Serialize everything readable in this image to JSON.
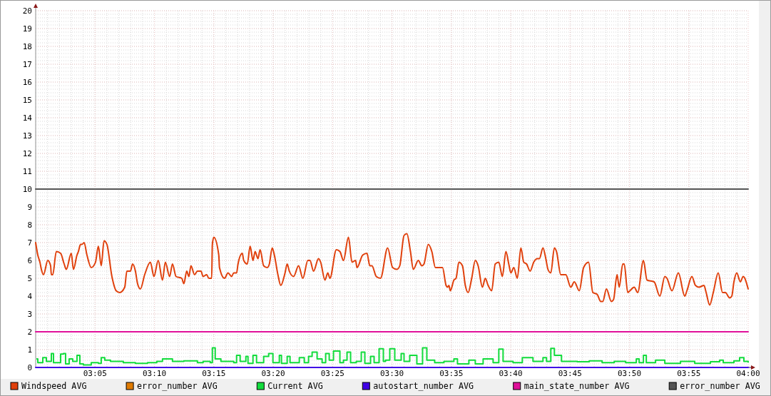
{
  "chart_data": {
    "type": "line",
    "xlim": [
      3,
      4
    ],
    "xticks": [
      {
        "value": 3.0833,
        "label": "03:05"
      },
      {
        "value": 3.1667,
        "label": "03:10"
      },
      {
        "value": 3.25,
        "label": "03:15"
      },
      {
        "value": 3.3333,
        "label": "03:20"
      },
      {
        "value": 3.4167,
        "label": "03:25"
      },
      {
        "value": 3.5,
        "label": "03:30"
      },
      {
        "value": 3.5833,
        "label": "03:35"
      },
      {
        "value": 3.6667,
        "label": "03:40"
      },
      {
        "value": 3.75,
        "label": "03:45"
      },
      {
        "value": 3.8333,
        "label": "03:50"
      },
      {
        "value": 3.9167,
        "label": "03:55"
      },
      {
        "value": 4,
        "label": "04:00"
      }
    ],
    "ylim": [
      0,
      20
    ],
    "yticks": [
      0,
      1,
      2,
      3,
      4,
      5,
      6,
      7,
      8,
      9,
      10,
      11,
      12,
      13,
      14,
      15,
      16,
      17,
      18,
      19,
      20
    ],
    "grid": true,
    "legend": "bottom",
    "series": [
      {
        "name": "Windspeed AVG",
        "color": "#e0400c",
        "x": [
          3.0,
          3.003,
          3.006,
          3.008,
          3.011,
          3.017,
          3.021,
          3.022,
          3.024,
          3.029,
          3.035,
          3.04,
          3.043,
          3.05,
          3.053,
          3.058,
          3.06,
          3.063,
          3.065,
          3.068,
          3.072,
          3.078,
          3.084,
          3.088,
          3.092,
          3.096,
          3.1,
          3.107,
          3.113,
          3.118,
          3.125,
          3.128,
          3.133,
          3.136,
          3.14,
          3.143,
          3.147,
          3.153,
          3.161,
          3.166,
          3.172,
          3.178,
          3.182,
          3.188,
          3.192,
          3.197,
          3.205,
          3.208,
          3.212,
          3.215,
          3.218,
          3.223,
          3.227,
          3.232,
          3.235,
          3.24,
          3.243,
          3.247,
          3.248,
          3.25,
          3.257,
          3.258,
          3.265,
          3.27,
          3.275,
          3.278,
          3.282,
          3.284,
          3.29,
          3.292,
          3.297,
          3.301,
          3.305,
          3.308,
          3.312,
          3.315,
          3.32,
          3.325,
          3.328,
          3.332,
          3.335,
          3.34,
          3.344,
          3.35,
          3.353,
          3.356,
          3.362,
          3.369,
          3.375,
          3.382,
          3.385,
          3.39,
          3.397,
          3.4,
          3.406,
          3.41,
          3.413,
          3.422,
          3.427,
          3.432,
          3.439,
          3.444,
          3.449,
          3.451,
          3.459,
          3.465,
          3.469,
          3.472,
          3.478,
          3.484,
          3.494,
          3.501,
          3.507,
          3.511,
          3.517,
          3.521,
          3.526,
          3.53,
          3.537,
          3.542,
          3.545,
          3.551,
          3.556,
          3.561,
          3.571,
          3.576,
          3.578,
          3.58,
          3.582,
          3.587,
          3.59,
          3.594,
          3.599,
          3.603,
          3.607,
          3.612,
          3.617,
          3.621,
          3.627,
          3.631,
          3.635,
          3.64,
          3.645,
          3.65,
          3.655,
          3.66,
          3.664,
          3.667,
          3.671,
          3.676,
          3.681,
          3.685,
          3.689,
          3.694,
          3.699,
          3.704,
          3.707,
          3.712,
          3.716,
          3.719,
          3.723,
          3.728,
          3.731,
          3.737,
          3.744,
          3.751,
          3.756,
          3.763,
          3.769,
          3.776,
          3.782,
          3.788,
          3.793,
          3.796,
          3.801,
          3.808,
          3.811,
          3.816,
          3.819,
          3.824,
          3.826,
          3.831,
          3.834,
          3.84,
          3.845,
          3.853,
          3.858,
          3.868,
          3.876,
          3.883,
          3.886,
          3.893,
          3.902,
          3.911,
          3.914,
          3.921,
          3.926,
          3.931,
          3.938,
          3.941,
          3.946,
          3.951,
          3.958,
          3.964,
          3.968,
          3.974,
          3.977,
          3.98,
          3.984,
          3.989,
          3.993,
          4.0
        ],
        "values": [
          7.0,
          6.3,
          5.9,
          5.5,
          5.2,
          6.0,
          5.7,
          5.2,
          5.2,
          6.5,
          6.4,
          5.8,
          5.5,
          6.4,
          5.5,
          6.3,
          6.5,
          6.9,
          6.9,
          7.0,
          6.3,
          5.6,
          5.9,
          6.8,
          5.7,
          7.1,
          6.9,
          5.1,
          4.3,
          4.2,
          4.5,
          5.4,
          5.4,
          5.8,
          5.4,
          4.7,
          4.4,
          5.2,
          5.9,
          5.1,
          6.0,
          4.9,
          5.9,
          5.1,
          5.8,
          5.1,
          5.0,
          4.7,
          5.4,
          5.1,
          5.7,
          5.2,
          5.4,
          5.4,
          5.1,
          5.2,
          5.0,
          5.0,
          6.9,
          7.3,
          6.3,
          5.6,
          5.0,
          5.3,
          5.1,
          5.3,
          5.3,
          5.8,
          6.4,
          6.0,
          5.8,
          6.8,
          6.0,
          6.5,
          6.1,
          6.6,
          5.7,
          5.6,
          5.8,
          6.7,
          6.3,
          5.2,
          4.6,
          5.3,
          5.8,
          5.4,
          5.1,
          5.7,
          5.0,
          6.0,
          6.0,
          5.4,
          6.1,
          5.9,
          4.9,
          5.3,
          5.0,
          6.6,
          6.5,
          6.0,
          7.3,
          5.9,
          6.0,
          5.6,
          6.3,
          6.4,
          5.7,
          5.7,
          5.1,
          5.0,
          6.7,
          5.6,
          5.5,
          5.7,
          7.4,
          7.5,
          6.5,
          5.5,
          6.0,
          5.7,
          5.8,
          6.9,
          6.5,
          5.6,
          5.6,
          4.6,
          4.5,
          4.6,
          4.3,
          4.9,
          5.0,
          5.9,
          5.7,
          4.6,
          4.2,
          5.0,
          6.0,
          5.7,
          4.5,
          5.0,
          4.6,
          4.3,
          5.8,
          5.9,
          5.1,
          6.5,
          5.8,
          5.3,
          5.6,
          5.0,
          6.7,
          5.9,
          5.8,
          5.4,
          5.9,
          6.1,
          6.1,
          6.7,
          6.1,
          5.5,
          5.3,
          6.7,
          6.5,
          5.2,
          5.2,
          4.5,
          4.8,
          4.3,
          5.6,
          5.9,
          4.2,
          4.1,
          3.7,
          3.7,
          4.4,
          3.7,
          3.8,
          5.2,
          4.5,
          5.8,
          5.8,
          4.2,
          4.3,
          4.5,
          4.2,
          6.0,
          4.9,
          4.8,
          4.0,
          5.1,
          5.0,
          4.3,
          5.3,
          4.0,
          4.3,
          5.1,
          4.6,
          4.5,
          4.6,
          4.2,
          3.5,
          4.2,
          5.3,
          4.2,
          4.2,
          3.9,
          4.0,
          4.8,
          5.3,
          4.8,
          5.1,
          4.4
        ]
      },
      {
        "name": "error_number AVG",
        "color": "#e07b00",
        "values": [
          null
        ]
      },
      {
        "name": "Current AVG",
        "color": "#12dc3c",
        "type": "step",
        "x": [
          3.001,
          3.003,
          3.01,
          3.015,
          3.022,
          3.025,
          3.035,
          3.039,
          3.042,
          3.047,
          3.052,
          3.058,
          3.062,
          3.067,
          3.078,
          3.088,
          3.092,
          3.097,
          3.105,
          3.123,
          3.14,
          3.157,
          3.17,
          3.178,
          3.192,
          3.208,
          3.227,
          3.235,
          3.245,
          3.248,
          3.252,
          3.26,
          3.278,
          3.282,
          3.287,
          3.295,
          3.298,
          3.305,
          3.31,
          3.32,
          3.327,
          3.333,
          3.342,
          3.345,
          3.353,
          3.357,
          3.37,
          3.377,
          3.383,
          3.388,
          3.395,
          3.402,
          3.407,
          3.412,
          3.418,
          3.427,
          3.432,
          3.437,
          3.442,
          3.45,
          3.457,
          3.462,
          3.47,
          3.475,
          3.482,
          3.488,
          3.491,
          3.497,
          3.504,
          3.513,
          3.517,
          3.525,
          3.535,
          3.543,
          3.549,
          3.56,
          3.573,
          3.587,
          3.592,
          3.608,
          3.617,
          3.628,
          3.642,
          3.65,
          3.656,
          3.67,
          3.683,
          3.698,
          3.712,
          3.717,
          3.723,
          3.728,
          3.738,
          3.76,
          3.777,
          3.795,
          3.812,
          3.828,
          3.843,
          3.847,
          3.853,
          3.857,
          3.87,
          3.883,
          3.905,
          3.925,
          3.947,
          3.96,
          3.965,
          3.98,
          3.988,
          3.994,
          4.0
        ],
        "values": [
          0.48,
          0.27,
          0.55,
          0.34,
          0.78,
          0.27,
          0.75,
          0.78,
          0.2,
          0.48,
          0.34,
          0.68,
          0.2,
          0.14,
          0.27,
          0.23,
          0.55,
          0.41,
          0.34,
          0.27,
          0.23,
          0.27,
          0.34,
          0.48,
          0.34,
          0.37,
          0.27,
          0.34,
          0.27,
          1.1,
          0.48,
          0.34,
          0.27,
          0.68,
          0.34,
          0.62,
          0.23,
          0.68,
          0.27,
          0.62,
          0.78,
          0.27,
          0.68,
          0.23,
          0.62,
          0.27,
          0.55,
          0.27,
          0.62,
          0.86,
          0.48,
          0.27,
          0.78,
          0.41,
          0.92,
          0.27,
          0.41,
          0.86,
          0.27,
          0.34,
          0.86,
          0.23,
          0.62,
          0.27,
          1.05,
          0.34,
          0.41,
          1.05,
          0.41,
          0.78,
          0.34,
          0.68,
          0.2,
          1.1,
          0.41,
          0.27,
          0.34,
          0.48,
          0.2,
          0.41,
          0.2,
          0.48,
          0.27,
          1.03,
          0.34,
          0.27,
          0.55,
          0.34,
          0.55,
          0.34,
          1.07,
          0.68,
          0.34,
          0.32,
          0.37,
          0.27,
          0.34,
          0.27,
          0.48,
          0.27,
          0.68,
          0.27,
          0.41,
          0.23,
          0.34,
          0.23,
          0.32,
          0.41,
          0.27,
          0.37,
          0.55,
          0.34,
          0.27
        ]
      },
      {
        "name": "autostart_number AVG",
        "color": "#4000e6",
        "x": [
          3,
          4
        ],
        "values": [
          0,
          0
        ]
      },
      {
        "name": "main_state_number AVG",
        "color": "#e0109a",
        "x": [
          3,
          4
        ],
        "values": [
          2,
          2
        ]
      },
      {
        "name": "error_number AVG",
        "color": "#555555",
        "x": [
          3,
          4
        ],
        "values": [
          10,
          10
        ]
      }
    ]
  }
}
